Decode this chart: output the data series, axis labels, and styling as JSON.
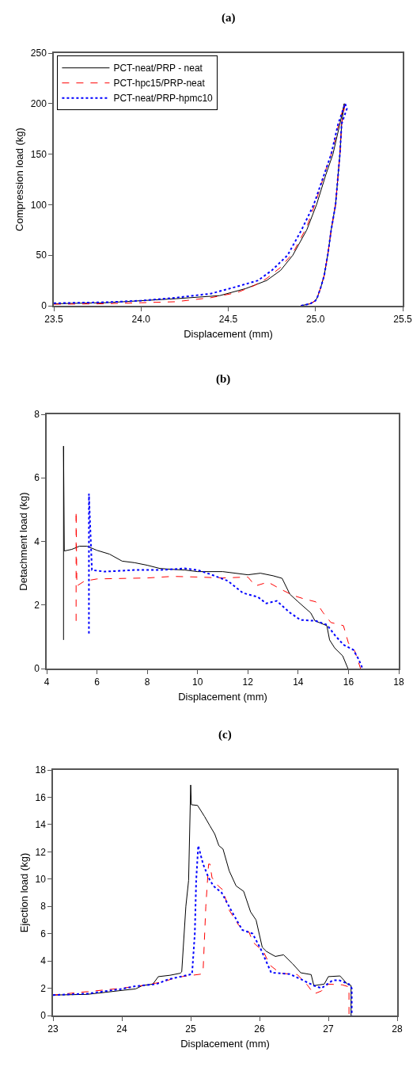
{
  "chart_data": [
    {
      "type": "line",
      "title": "(a)",
      "xlabel": "Displacement (mm)",
      "ylabel": "Compression load (kg)",
      "xlim": [
        23.5,
        25.5
      ],
      "xticks": [
        23.5,
        {
          "value": 24,
          "label": "24.0"
        },
        24.5,
        {
          "value": 25,
          "label": "25.0"
        },
        25.5
      ],
      "ylim": [
        0,
        250
      ],
      "yticks": [
        0,
        50,
        100,
        150,
        200,
        250
      ],
      "legend": "top left",
      "series": [
        {
          "name": "PCT-neat/PRP - neat",
          "color": "#000000",
          "line_style": "solid",
          "x": [
            23.5,
            23.8,
            24.0,
            24.2,
            24.45,
            24.6,
            24.72,
            24.8,
            24.87,
            24.95,
            25.006,
            25.06,
            25.1,
            25.14,
            25.165,
            25.15,
            25.14,
            25.115,
            25.09,
            25.07,
            25.05,
            25.03,
            25.01,
            25.0,
            24.97,
            24.915
          ],
          "values": [
            2,
            3,
            5,
            7,
            10,
            17,
            25,
            35,
            50,
            75,
            100,
            130,
            150,
            180,
            200,
            180,
            150,
            100,
            75,
            50,
            30,
            18,
            8,
            5,
            2,
            0
          ]
        },
        {
          "name": "PCT-hpc15/PRP-neat",
          "color": "#ff0000",
          "line_style": "dashed",
          "x": [
            23.5,
            23.8,
            24.0,
            24.2,
            24.4,
            24.55,
            24.65,
            24.72,
            24.8,
            24.87,
            24.95,
            25.0,
            25.06,
            25.1,
            25.14,
            25.17,
            25.15,
            25.14,
            25.115,
            25.09,
            25.07,
            25.05,
            25.03,
            25.01,
            25.0,
            24.97,
            24.915
          ],
          "values": [
            1.5,
            2,
            3,
            4,
            8,
            13,
            20,
            27,
            38,
            52,
            78,
            102,
            135,
            155,
            185,
            200,
            180,
            150,
            100,
            75,
            50,
            30,
            18,
            8,
            5,
            2,
            0
          ]
        },
        {
          "name": "PCT-neat/PRP-hpmc10",
          "color": "#0000ff",
          "line_style": "dotted",
          "x": [
            23.5,
            23.8,
            24.0,
            24.2,
            24.4,
            24.55,
            24.67,
            24.75,
            24.84,
            24.92,
            24.99,
            25.05,
            25.09,
            25.13,
            25.17,
            25.18,
            25.15,
            25.14,
            25.115,
            25.09,
            25.07,
            25.05,
            25.03,
            25.01,
            25.0,
            24.97,
            24.915
          ],
          "values": [
            2.5,
            3.5,
            5,
            8,
            12,
            19,
            25,
            35,
            50,
            75,
            100,
            130,
            150,
            180,
            200,
            195,
            180,
            150,
            100,
            75,
            50,
            30,
            18,
            8,
            5,
            2,
            0
          ]
        }
      ]
    },
    {
      "type": "line",
      "title": "(b)",
      "xlabel": "Displacement (mm)",
      "ylabel": "Detachment load (kg)",
      "xlim": [
        4,
        18
      ],
      "xticks": [
        4,
        6,
        8,
        10,
        12,
        14,
        16,
        18
      ],
      "ylim": [
        0,
        8
      ],
      "yticks": [
        0,
        2,
        4,
        6,
        8
      ],
      "series": [
        {
          "color": "#000000",
          "line_style": "solid",
          "x": [
            4.67,
            4.67,
            4.7,
            5.0,
            5.3,
            5.6,
            6.0,
            6.5,
            7.0,
            7.5,
            8.0,
            8.5,
            9.0,
            9.5,
            10.0,
            11.0,
            12.0,
            12.5,
            13.0,
            13.36,
            13.67,
            14.0,
            14.5,
            14.67,
            15.14,
            15.25,
            15.45,
            15.77,
            15.98
          ],
          "values": [
            0.9,
            7.0,
            3.7,
            3.75,
            3.85,
            3.85,
            3.72,
            3.6,
            3.38,
            3.33,
            3.25,
            3.15,
            3.12,
            3.1,
            3.05,
            3.05,
            2.95,
            3.0,
            2.92,
            2.84,
            2.34,
            2.1,
            1.75,
            1.5,
            1.35,
            0.9,
            0.65,
            0.4,
            0
          ]
        },
        {
          "color": "#ff0000",
          "line_style": "dashed",
          "x": [
            5.17,
            5.17,
            5.2,
            5.5,
            6.0,
            8.0,
            9.0,
            10.0,
            11.0,
            12.0,
            12.3,
            12.8,
            13.3,
            13.8,
            14.2,
            14.7,
            15.0,
            15.3,
            15.8,
            16.0,
            16.25,
            16.48
          ],
          "values": [
            1.5,
            4.95,
            2.6,
            2.75,
            2.82,
            2.85,
            2.9,
            2.88,
            2.85,
            2.88,
            2.6,
            2.72,
            2.5,
            2.3,
            2.2,
            2.1,
            1.75,
            1.45,
            1.35,
            0.8,
            0.55,
            0
          ]
        },
        {
          "color": "#0000ff",
          "line_style": "dotted",
          "x": [
            5.68,
            5.68,
            5.8,
            6.3,
            7.5,
            8.5,
            9.5,
            10.0,
            10.5,
            11.2,
            11.8,
            12.4,
            12.73,
            13.15,
            13.67,
            14.09,
            14.7,
            15.14,
            15.46,
            15.8,
            16.19,
            16.4,
            16.56
          ],
          "values": [
            1.1,
            5.5,
            3.1,
            3.05,
            3.1,
            3.1,
            3.15,
            3.1,
            2.97,
            2.76,
            2.38,
            2.25,
            2.05,
            2.13,
            1.76,
            1.53,
            1.5,
            1.38,
            1.05,
            0.75,
            0.59,
            0.3,
            0
          ]
        }
      ]
    },
    {
      "type": "line",
      "title": "(c)",
      "xlabel": "Displacement (mm)",
      "ylabel": "Ejection load (kg)",
      "xlim": [
        23,
        28
      ],
      "xticks": [
        23,
        24,
        25,
        26,
        27,
        28
      ],
      "ylim": [
        0,
        18
      ],
      "yticks": [
        0,
        2,
        4,
        6,
        8,
        10,
        12,
        14,
        16,
        18
      ],
      "series": [
        {
          "color": "#000000",
          "line_style": "solid",
          "x": [
            23.0,
            23.5,
            24.0,
            24.2,
            24.3,
            24.45,
            24.53,
            24.7,
            24.85,
            24.87,
            24.93,
            24.97,
            25.0,
            25.01,
            25.1,
            25.2,
            25.28,
            25.35,
            25.41,
            25.47,
            25.56,
            25.66,
            25.77,
            25.87,
            25.95,
            26.04,
            26.1,
            26.23,
            26.35,
            26.48,
            26.6,
            26.75,
            26.79,
            26.94,
            27.0,
            27.17,
            27.28,
            27.33,
            27.33
          ],
          "values": [
            1.5,
            1.55,
            1.84,
            1.95,
            2.2,
            2.3,
            2.85,
            2.95,
            3.1,
            3.2,
            8.0,
            9.9,
            16.9,
            15.45,
            15.4,
            14.6,
            13.9,
            13.3,
            12.45,
            12.2,
            10.6,
            9.5,
            9.1,
            7.6,
            7.0,
            5.0,
            4.7,
            4.33,
            4.45,
            3.8,
            3.13,
            3.0,
            2.19,
            2.3,
            2.85,
            2.9,
            2.28,
            2.2,
            0
          ]
        },
        {
          "color": "#ff0000",
          "line_style": "dashed",
          "x": [
            23.0,
            23.5,
            24.0,
            24.3,
            24.6,
            24.8,
            25.16,
            25.18,
            25.22,
            25.26,
            25.28,
            25.31,
            25.4,
            25.47,
            25.55,
            25.7,
            25.85,
            25.9,
            26.06,
            26.15,
            26.3,
            26.55,
            26.7,
            26.79,
            26.9,
            27.0,
            27.2,
            27.3,
            27.3
          ],
          "values": [
            1.5,
            1.75,
            2.0,
            2.2,
            2.47,
            2.8,
            3.04,
            3.2,
            8.0,
            11.1,
            11.1,
            10.1,
            9.5,
            9.2,
            7.8,
            6.6,
            6.1,
            5.4,
            4.66,
            3.7,
            3.1,
            3.0,
            2.2,
            1.58,
            1.8,
            2.3,
            2.25,
            2.1,
            0
          ]
        },
        {
          "color": "#0000ff",
          "line_style": "dotted",
          "x": [
            23.0,
            23.5,
            24.0,
            24.2,
            24.5,
            24.68,
            24.9,
            25.02,
            25.06,
            25.08,
            25.11,
            25.18,
            25.26,
            25.33,
            25.45,
            25.6,
            25.75,
            25.9,
            26.02,
            26.17,
            26.44,
            26.6,
            26.79,
            26.9,
            27.06,
            27.15,
            27.3,
            27.34,
            27.34
          ],
          "values": [
            1.5,
            1.6,
            1.95,
            2.15,
            2.3,
            2.66,
            2.9,
            3.04,
            6.0,
            9.9,
            12.45,
            11.1,
            10.1,
            9.5,
            9.0,
            7.6,
            6.27,
            6.0,
            4.85,
            3.14,
            3.04,
            2.66,
            2.19,
            2.0,
            2.57,
            2.6,
            2.3,
            2.0,
            0
          ]
        }
      ]
    }
  ]
}
